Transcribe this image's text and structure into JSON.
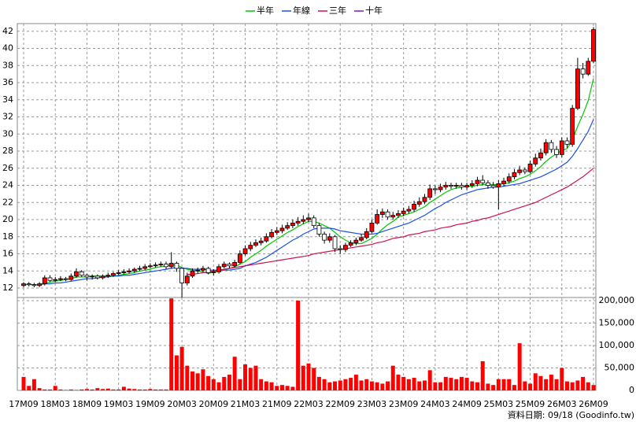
{
  "chart_data": {
    "type": "candlestick",
    "legend": "top",
    "grid": true,
    "note": "資料日期: 09/18 (Goodinfo.tw)",
    "up_color": "#ff0000",
    "down_color": "#ffffff",
    "volume_color": "#ff0000",
    "categories": [
      "17M09",
      null,
      null,
      null,
      null,
      null,
      "18M03",
      null,
      null,
      null,
      null,
      null,
      "18M09",
      null,
      null,
      null,
      null,
      null,
      "19M03",
      null,
      null,
      null,
      null,
      null,
      "19M09",
      null,
      null,
      null,
      null,
      null,
      "20M03",
      null,
      null,
      null,
      null,
      null,
      "20M09",
      null,
      null,
      null,
      null,
      null,
      "21M03",
      null,
      null,
      null,
      null,
      null,
      "21M09",
      null,
      null,
      null,
      null,
      null,
      "22M03",
      null,
      null,
      null,
      null,
      null,
      "22M09",
      null,
      null,
      null,
      null,
      null,
      "23M03",
      null,
      null,
      null,
      null,
      null,
      "23M09",
      null,
      null,
      null,
      null,
      null,
      "24M03",
      null,
      null,
      null,
      null,
      null,
      "24M09",
      null,
      null,
      null,
      null,
      null,
      "25M03",
      null,
      null,
      null,
      null,
      null,
      "25M09",
      null,
      null,
      null,
      null,
      null,
      "26M03",
      null,
      null,
      null,
      null,
      null,
      "26M09"
    ],
    "open": [
      12.3,
      12.5,
      12.4,
      12.3,
      12.5,
      13.2,
      12.9,
      13.0,
      13.1,
      13.0,
      13.4,
      13.9,
      13.5,
      13.3,
      13.4,
      13.2,
      13.4,
      13.5,
      13.7,
      13.8,
      13.9,
      14.0,
      14.2,
      14.3,
      14.5,
      14.6,
      14.7,
      14.8,
      14.5,
      14.9,
      14.3,
      12.6,
      13.4,
      14.0,
      14.1,
      14.3,
      13.8,
      13.9,
      14.5,
      14.8,
      14.6,
      15.0,
      16.0,
      16.6,
      17.0,
      17.3,
      17.5,
      18.0,
      18.5,
      18.7,
      19.0,
      19.3,
      19.6,
      19.8,
      20.0,
      20.2,
      19.3,
      18.3,
      17.6,
      18.0,
      16.6,
      16.5,
      17.0,
      17.3,
      17.6,
      17.9,
      18.6,
      19.6,
      20.6,
      20.9,
      20.3,
      20.5,
      20.7,
      21.0,
      21.2,
      21.8,
      22.1,
      22.6,
      23.6,
      23.5,
      23.8,
      24.0,
      23.9,
      24.0,
      23.8,
      24.0,
      24.2,
      24.6,
      24.3,
      24.0,
      23.8,
      24.2,
      24.5,
      25.0,
      25.5,
      25.8,
      25.6,
      26.5,
      27.2,
      27.8,
      29.0,
      28.2,
      27.6,
      29.2,
      28.8,
      33.0,
      37.6,
      37.0,
      38.5
    ],
    "high": [
      12.7,
      12.7,
      12.6,
      12.7,
      13.5,
      13.5,
      13.3,
      13.4,
      13.3,
      13.7,
      14.3,
      14.1,
      13.7,
      13.6,
      13.6,
      13.6,
      13.8,
      13.9,
      14.1,
      14.2,
      14.3,
      14.4,
      14.6,
      14.8,
      14.9,
      15.0,
      15.1,
      15.1,
      16.2,
      15.1,
      14.4,
      13.8,
      14.3,
      14.4,
      14.6,
      14.5,
      14.2,
      14.8,
      15.1,
      15.0,
      15.3,
      16.4,
      17.0,
      17.4,
      17.7,
      17.9,
      18.4,
      18.9,
      19.1,
      19.4,
      19.7,
      20.0,
      20.3,
      20.5,
      20.7,
      20.5,
      19.6,
      18.6,
      18.4,
      18.2,
      17.0,
      17.3,
      17.6,
      17.9,
      18.3,
      19.0,
      20.0,
      21.2,
      21.3,
      21.2,
      20.9,
      21.1,
      21.4,
      21.6,
      22.2,
      22.6,
      23.0,
      24.1,
      24.0,
      24.2,
      24.4,
      24.3,
      24.3,
      24.3,
      24.3,
      24.6,
      25.0,
      25.2,
      24.6,
      24.4,
      24.6,
      24.9,
      25.4,
      25.9,
      26.3,
      26.1,
      26.9,
      27.7,
      28.3,
      29.4,
      29.3,
      28.6,
      29.6,
      29.6,
      33.4,
      38.9,
      38.3,
      38.9,
      42.5
    ],
    "low": [
      12.1,
      12.2,
      12.1,
      12.1,
      12.3,
      12.7,
      12.7,
      12.8,
      12.8,
      12.8,
      13.2,
      13.3,
      12.9,
      13.0,
      13.0,
      13.0,
      13.2,
      13.3,
      13.5,
      13.6,
      13.7,
      13.8,
      14.0,
      14.1,
      14.3,
      14.4,
      14.5,
      14.2,
      14.3,
      13.9,
      10.9,
      12.3,
      13.2,
      13.7,
      13.9,
      13.6,
      13.5,
      13.7,
      14.3,
      14.3,
      14.4,
      14.8,
      15.8,
      16.3,
      16.8,
      17.0,
      17.3,
      17.8,
      18.2,
      18.4,
      18.8,
      19.0,
      19.3,
      19.5,
      19.7,
      19.0,
      18.0,
      17.2,
      17.3,
      16.2,
      16.0,
      16.2,
      16.8,
      17.0,
      17.4,
      17.7,
      18.4,
      19.4,
      20.2,
      20.0,
      20.0,
      20.2,
      20.4,
      20.7,
      20.9,
      21.5,
      21.8,
      22.3,
      23.0,
      23.2,
      23.5,
      23.6,
      23.6,
      23.5,
      23.5,
      23.7,
      23.9,
      24.0,
      23.6,
      23.6,
      21.2,
      23.9,
      24.2,
      24.7,
      25.2,
      25.3,
      25.4,
      26.2,
      26.9,
      27.5,
      27.8,
      27.2,
      27.3,
      28.4,
      28.5,
      32.8,
      36.5,
      36.8,
      38.3
    ],
    "close": [
      12.5,
      12.4,
      12.3,
      12.5,
      13.2,
      12.9,
      13.0,
      13.1,
      13.0,
      13.4,
      13.9,
      13.5,
      13.3,
      13.4,
      13.2,
      13.4,
      13.5,
      13.7,
      13.8,
      13.9,
      14.0,
      14.2,
      14.3,
      14.5,
      14.6,
      14.7,
      14.8,
      14.5,
      14.9,
      14.3,
      12.6,
      13.4,
      14.0,
      14.1,
      14.3,
      13.8,
      13.9,
      14.5,
      14.8,
      14.6,
      15.0,
      16.0,
      16.6,
      17.0,
      17.3,
      17.5,
      18.0,
      18.5,
      18.7,
      19.0,
      19.3,
      19.6,
      19.8,
      20.0,
      20.2,
      19.3,
      18.3,
      17.6,
      18.0,
      16.6,
      16.5,
      17.0,
      17.3,
      17.6,
      17.9,
      18.6,
      19.6,
      20.6,
      20.9,
      20.3,
      20.5,
      20.7,
      21.0,
      21.2,
      21.8,
      22.1,
      22.6,
      23.6,
      23.5,
      23.8,
      24.0,
      23.9,
      24.0,
      23.8,
      24.0,
      24.2,
      24.6,
      24.3,
      24.0,
      23.8,
      24.2,
      24.5,
      25.0,
      25.5,
      25.8,
      25.6,
      26.5,
      27.2,
      27.8,
      29.0,
      28.2,
      27.6,
      29.2,
      28.8,
      33.0,
      37.6,
      37.0,
      38.5,
      42.2
    ],
    "volume": [
      30000,
      10000,
      25000,
      5000,
      2000,
      2000,
      10000,
      2000,
      1000,
      2000,
      1000,
      2000,
      3000,
      2000,
      5000,
      3000,
      4000,
      2000,
      2000,
      8000,
      4000,
      3000,
      2000,
      2000,
      3000,
      2000,
      2000,
      2000,
      205000,
      78000,
      97000,
      55000,
      42000,
      38000,
      47000,
      32000,
      25000,
      18000,
      30000,
      35000,
      75000,
      25000,
      58000,
      50000,
      55000,
      25000,
      20000,
      18000,
      10000,
      12000,
      10000,
      8000,
      200000,
      55000,
      60000,
      50000,
      30000,
      25000,
      18000,
      20000,
      22000,
      25000,
      28000,
      35000,
      22000,
      25000,
      20000,
      18000,
      15000,
      20000,
      55000,
      35000,
      30000,
      25000,
      28000,
      20000,
      22000,
      45000,
      18000,
      18000,
      30000,
      28000,
      25000,
      30000,
      28000,
      20000,
      18000,
      65000,
      15000,
      12000,
      25000,
      25000,
      25000,
      12000,
      105000,
      20000,
      15000,
      38000,
      32000,
      25000,
      35000,
      25000,
      50000,
      20000,
      18000,
      22000,
      30000,
      18000,
      12000
    ],
    "series": [
      {
        "name": "半年",
        "color": "#00c800",
        "values": [
          12.4,
          12.4,
          12.4,
          12.4,
          12.6,
          12.7,
          12.8,
          12.9,
          13.0,
          13.1,
          13.3,
          13.3,
          13.3,
          13.4,
          13.4,
          13.4,
          13.4,
          13.4,
          13.5,
          13.6,
          13.7,
          13.8,
          14.0,
          14.1,
          14.2,
          14.4,
          14.5,
          14.6,
          14.7,
          14.7,
          14.4,
          14.2,
          14.1,
          14.0,
          13.9,
          13.7,
          13.9,
          14.0,
          14.1,
          14.3,
          14.5,
          14.8,
          15.1,
          15.6,
          16.0,
          16.4,
          16.9,
          17.3,
          17.7,
          18.1,
          18.5,
          18.8,
          19.2,
          19.5,
          19.8,
          19.8,
          19.6,
          19.3,
          19.0,
          18.5,
          18.0,
          17.6,
          17.3,
          17.2,
          17.2,
          17.5,
          17.8,
          18.3,
          18.9,
          19.4,
          19.8,
          20.3,
          20.5,
          20.7,
          20.9,
          21.2,
          21.5,
          22.0,
          22.4,
          22.8,
          23.2,
          23.5,
          23.7,
          23.8,
          23.9,
          23.9,
          24.0,
          24.1,
          24.1,
          24.1,
          24.1,
          24.2,
          24.3,
          24.5,
          24.8,
          25.0,
          25.3,
          25.7,
          26.2,
          26.8,
          27.3,
          27.7,
          28.1,
          28.3,
          29.3,
          30.9,
          32.3,
          33.9,
          36.5
        ]
      },
      {
        "name": "年線",
        "color": "#1a50e6",
        "values": [
          null,
          null,
          null,
          12.4,
          12.5,
          12.5,
          12.6,
          12.6,
          12.7,
          12.8,
          12.9,
          13.0,
          13.1,
          13.1,
          13.2,
          13.3,
          13.3,
          13.4,
          13.4,
          13.5,
          13.5,
          13.6,
          13.7,
          13.8,
          13.9,
          14.0,
          14.1,
          14.2,
          14.3,
          14.4,
          14.3,
          14.3,
          14.2,
          14.2,
          14.2,
          14.1,
          14.1,
          14.1,
          14.1,
          14.1,
          14.2,
          14.3,
          14.6,
          14.8,
          15.0,
          15.3,
          15.6,
          16.0,
          16.4,
          16.8,
          17.2,
          17.6,
          17.9,
          18.3,
          18.6,
          18.9,
          19.0,
          19.0,
          19.0,
          18.9,
          18.7,
          18.6,
          18.5,
          18.4,
          18.3,
          18.3,
          18.3,
          18.4,
          18.6,
          18.8,
          19.0,
          19.2,
          19.4,
          19.6,
          19.9,
          20.2,
          20.5,
          20.9,
          21.3,
          21.6,
          22.0,
          22.3,
          22.6,
          22.9,
          23.1,
          23.3,
          23.5,
          23.6,
          23.7,
          23.8,
          23.8,
          23.9,
          24.0,
          24.1,
          24.2,
          24.4,
          24.6,
          24.8,
          25.0,
          25.3,
          25.6,
          25.9,
          26.3,
          26.7,
          27.4,
          28.3,
          29.3,
          30.3,
          31.7
        ]
      },
      {
        "name": "三年",
        "color": "#d0104a",
        "values": [
          null,
          null,
          null,
          null,
          null,
          null,
          null,
          null,
          null,
          null,
          null,
          null,
          null,
          null,
          null,
          null,
          null,
          null,
          null,
          null,
          null,
          null,
          null,
          null,
          null,
          null,
          null,
          null,
          null,
          null,
          null,
          13.6,
          13.6,
          13.7,
          13.8,
          13.9,
          14.0,
          14.1,
          14.2,
          14.3,
          14.4,
          14.5,
          14.6,
          14.7,
          14.8,
          14.9,
          15.0,
          15.1,
          15.2,
          15.3,
          15.4,
          15.5,
          15.6,
          15.7,
          15.8,
          16.0,
          16.1,
          16.2,
          16.3,
          16.4,
          16.5,
          16.6,
          16.7,
          16.8,
          16.9,
          17.0,
          17.1,
          17.3,
          17.4,
          17.6,
          17.8,
          17.9,
          18.0,
          18.2,
          18.3,
          18.4,
          18.6,
          18.7,
          18.8,
          19.0,
          19.1,
          19.2,
          19.4,
          19.5,
          19.6,
          19.8,
          19.9,
          20.1,
          20.2,
          20.4,
          20.6,
          20.8,
          21.0,
          21.2,
          21.4,
          21.6,
          21.8,
          22.0,
          22.3,
          22.6,
          22.9,
          23.2,
          23.5,
          23.8,
          24.2,
          24.6,
          25.0,
          25.5,
          26.0
        ]
      },
      {
        "name": "十年",
        "color": "#7a1ab0",
        "values": [
          null,
          null,
          null,
          null,
          null,
          null,
          null,
          null,
          null,
          null,
          null,
          null,
          null,
          null,
          null,
          null,
          null,
          null,
          null,
          null,
          null,
          null,
          null,
          null,
          null,
          null,
          null,
          null,
          null,
          null,
          null,
          null,
          null,
          null,
          null,
          null,
          null,
          null,
          null,
          null,
          null,
          null,
          null,
          null,
          null,
          null,
          null,
          null,
          null,
          null,
          null,
          null,
          null,
          null,
          null,
          null,
          null,
          null,
          null,
          null,
          null,
          null,
          null,
          null,
          null,
          null,
          null,
          null,
          null,
          null,
          null,
          null,
          null,
          null,
          null,
          null,
          null,
          null,
          null,
          null,
          null,
          null,
          null,
          null,
          null,
          null,
          null,
          null,
          null,
          null,
          null,
          null,
          null,
          null,
          null,
          null,
          null,
          null,
          null,
          null,
          null,
          null,
          null,
          null,
          null,
          null,
          null,
          null,
          null
        ]
      }
    ],
    "ylim": [
      10.9,
      42.9
    ],
    "yticks": [
      12,
      14,
      16,
      18,
      20,
      22,
      24,
      26,
      28,
      30,
      32,
      34,
      36,
      38,
      40,
      42
    ],
    "volume_ylim": [
      0,
      207000
    ],
    "volume_yticks": [
      0,
      {
        "value": 50000,
        "label": "50,000"
      },
      {
        "value": 100000,
        "label": "100,000"
      },
      {
        "value": 150000,
        "label": "150,000"
      },
      {
        "value": 200000,
        "label": "200,000"
      }
    ]
  }
}
